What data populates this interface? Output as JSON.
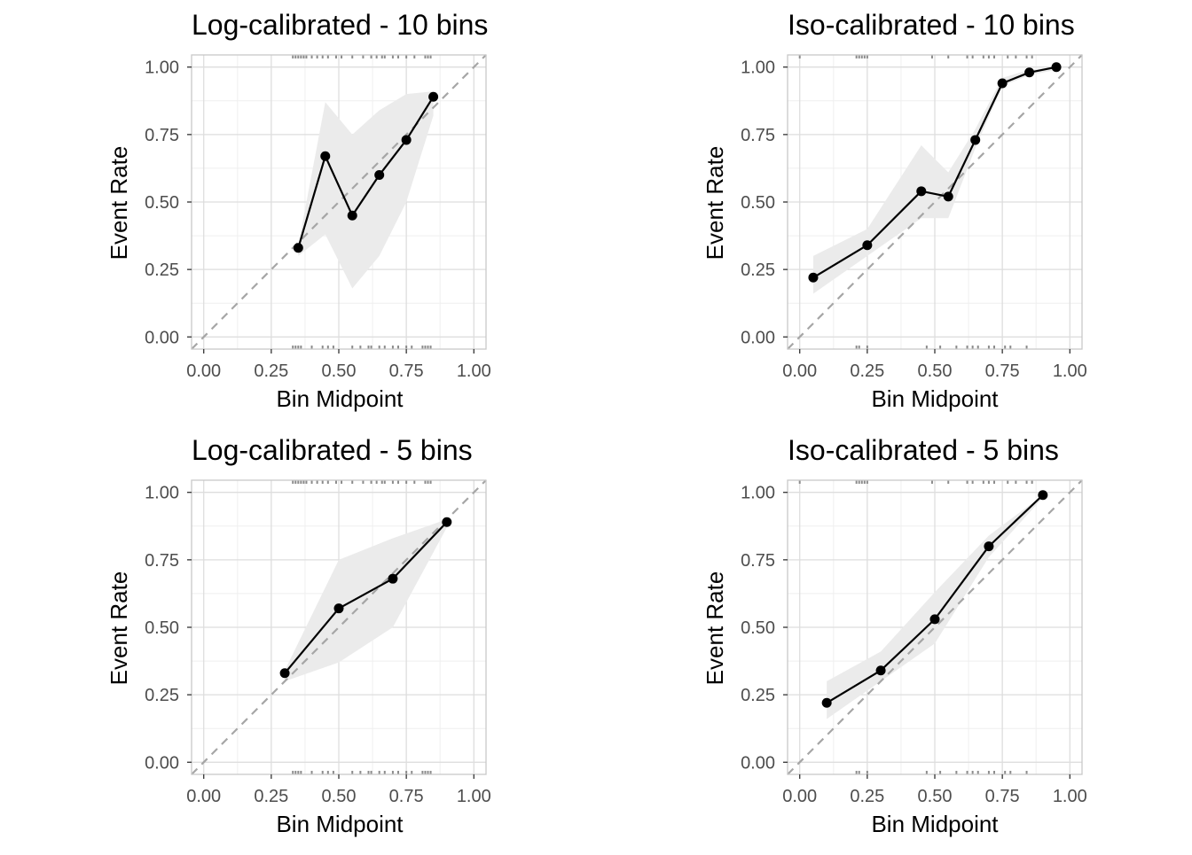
{
  "colors": {
    "background": "#ffffff",
    "panel_border": "#c8c8c8",
    "grid_major": "#dedede",
    "grid_minor": "#efefef",
    "ribbon": "#ebebeb",
    "line": "#000000",
    "reference_line": "#a6a6a6",
    "rug": "#8c8c8c",
    "tick_text": "#4d4d4d"
  },
  "chart_data": [
    {
      "type": "line",
      "title": "Log-calibrated - 10 bins",
      "xlabel": "Bin Midpoint",
      "ylabel": "Event Rate",
      "xlim": [
        0,
        1
      ],
      "ylim": [
        0,
        1
      ],
      "xticks": [
        "0.00",
        "0.25",
        "0.50",
        "0.75",
        "1.00"
      ],
      "yticks": [
        "0.00",
        "0.25",
        "0.50",
        "0.75",
        "1.00"
      ],
      "grid": true,
      "reference_line": "diagonal dashed",
      "x": [
        0.35,
        0.45,
        0.55,
        0.65,
        0.75,
        0.85
      ],
      "y": [
        0.33,
        0.67,
        0.45,
        0.6,
        0.73,
        0.89
      ],
      "ribbon_lower": [
        0.3,
        0.38,
        0.18,
        0.3,
        0.5,
        0.82
      ],
      "ribbon_upper": [
        0.34,
        0.87,
        0.75,
        0.84,
        0.9,
        0.91
      ],
      "rug_top": [
        0.33,
        0.34,
        0.35,
        0.36,
        0.37,
        0.38,
        0.4,
        0.42,
        0.44,
        0.46,
        0.49,
        0.51,
        0.55,
        0.59,
        0.62,
        0.64,
        0.66,
        0.67,
        0.7,
        0.72,
        0.75,
        0.78,
        0.82,
        0.83,
        0.84
      ],
      "rug_bottom": [
        0.33,
        0.34,
        0.35,
        0.36,
        0.4,
        0.44,
        0.46,
        0.48,
        0.55,
        0.58,
        0.61,
        0.62,
        0.65,
        0.67,
        0.7,
        0.72,
        0.75,
        0.77,
        0.81,
        0.82,
        0.83,
        0.84
      ]
    },
    {
      "type": "line",
      "title": "Iso-calibrated - 10 bins",
      "xlabel": "Bin Midpoint",
      "ylabel": "Event Rate",
      "xlim": [
        0,
        1
      ],
      "ylim": [
        0,
        1
      ],
      "xticks": [
        "0.00",
        "0.25",
        "0.50",
        "0.75",
        "1.00"
      ],
      "yticks": [
        "0.00",
        "0.25",
        "0.50",
        "0.75",
        "1.00"
      ],
      "grid": true,
      "reference_line": "diagonal dashed",
      "x": [
        0.05,
        0.25,
        0.45,
        0.55,
        0.65,
        0.75,
        0.85,
        0.95
      ],
      "y": [
        0.22,
        0.34,
        0.54,
        0.52,
        0.73,
        0.94,
        0.98,
        1.0
      ],
      "ribbon_lower": [
        0.16,
        0.3,
        0.44,
        0.44,
        0.7,
        0.93,
        0.97,
        0.99
      ],
      "ribbon_upper": [
        0.3,
        0.4,
        0.71,
        0.61,
        0.77,
        0.96,
        0.99,
        1.0
      ],
      "rug_top": [
        0.0,
        0.21,
        0.22,
        0.23,
        0.24,
        0.25,
        0.49,
        0.55,
        0.62,
        0.64,
        0.68,
        0.7,
        0.72,
        0.77,
        0.8,
        0.84,
        0.86
      ],
      "rug_bottom": [
        0.21,
        0.22,
        0.25,
        0.47,
        0.52,
        0.58,
        0.62,
        0.64,
        0.66,
        0.7,
        0.72,
        0.76,
        0.78,
        0.84
      ]
    },
    {
      "type": "line",
      "title": "Log-calibrated - 5 bins",
      "xlabel": "Bin Midpoint",
      "ylabel": "Event Rate",
      "xlim": [
        0,
        1
      ],
      "ylim": [
        0,
        1
      ],
      "xticks": [
        "0.00",
        "0.25",
        "0.50",
        "0.75",
        "1.00"
      ],
      "yticks": [
        "0.00",
        "0.25",
        "0.50",
        "0.75",
        "1.00"
      ],
      "grid": true,
      "reference_line": "diagonal dashed",
      "x": [
        0.3,
        0.5,
        0.7,
        0.9
      ],
      "y": [
        0.33,
        0.57,
        0.68,
        0.89
      ],
      "ribbon_lower": [
        0.3,
        0.37,
        0.5,
        0.87
      ],
      "ribbon_upper": [
        0.34,
        0.75,
        0.83,
        0.9
      ],
      "rug_top": [
        0.33,
        0.34,
        0.35,
        0.36,
        0.37,
        0.38,
        0.4,
        0.42,
        0.44,
        0.46,
        0.49,
        0.51,
        0.55,
        0.59,
        0.62,
        0.64,
        0.66,
        0.67,
        0.7,
        0.72,
        0.75,
        0.78,
        0.82,
        0.83,
        0.84
      ],
      "rug_bottom": [
        0.33,
        0.34,
        0.35,
        0.36,
        0.4,
        0.44,
        0.46,
        0.48,
        0.55,
        0.58,
        0.61,
        0.62,
        0.65,
        0.67,
        0.7,
        0.72,
        0.75,
        0.77,
        0.81,
        0.82,
        0.83,
        0.84
      ]
    },
    {
      "type": "line",
      "title": "Iso-calibrated - 5 bins",
      "xlabel": "Bin Midpoint",
      "ylabel": "Event Rate",
      "xlim": [
        0,
        1
      ],
      "ylim": [
        0,
        1
      ],
      "xticks": [
        "0.00",
        "0.25",
        "0.50",
        "0.75",
        "1.00"
      ],
      "yticks": [
        "0.00",
        "0.25",
        "0.50",
        "0.75",
        "1.00"
      ],
      "grid": true,
      "reference_line": "diagonal dashed",
      "x": [
        0.1,
        0.3,
        0.5,
        0.7,
        0.9
      ],
      "y": [
        0.22,
        0.34,
        0.53,
        0.8,
        0.99
      ],
      "ribbon_lower": [
        0.16,
        0.3,
        0.44,
        0.76,
        0.98
      ],
      "ribbon_upper": [
        0.3,
        0.41,
        0.63,
        0.84,
        0.99
      ],
      "rug_top": [
        0.0,
        0.21,
        0.22,
        0.23,
        0.24,
        0.25,
        0.49,
        0.55,
        0.62,
        0.64,
        0.68,
        0.7,
        0.72,
        0.77,
        0.8,
        0.84,
        0.86
      ],
      "rug_bottom": [
        0.21,
        0.22,
        0.25,
        0.47,
        0.52,
        0.58,
        0.62,
        0.64,
        0.66,
        0.7,
        0.72,
        0.76,
        0.78,
        0.84
      ]
    }
  ]
}
